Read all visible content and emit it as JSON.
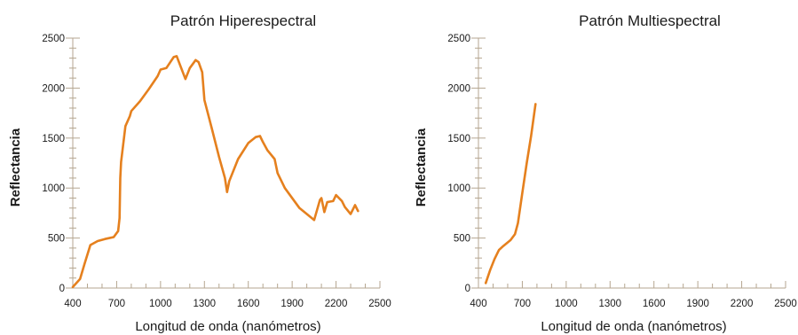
{
  "colors": {
    "line": "#e5801e",
    "axis": "#b5a690"
  },
  "chart_data": [
    {
      "type": "line",
      "title": "Patrón Hiperespectral",
      "xlabel": "Longitud de onda (nanómetros)",
      "ylabel": "Reflectancia",
      "xlim": [
        400,
        2500
      ],
      "ylim": [
        0,
        2500
      ],
      "xticks": [
        400,
        700,
        1000,
        1300,
        1600,
        1900,
        2200,
        2500
      ],
      "xtick_labels": [
        "400",
        "700",
        "1000",
        "1300",
        "1600",
        "1900",
        "2200",
        "2500"
      ],
      "yticks": [
        0,
        500,
        1000,
        1500,
        2000,
        2500
      ],
      "ytick_labels": [
        "0",
        "500",
        "1000",
        "1500",
        "2000",
        "2500"
      ],
      "grid": false,
      "series": [
        {
          "x": [
            400,
            450,
            480,
            520,
            570,
            620,
            680,
            710,
            720,
            725,
            730,
            760,
            790,
            800,
            860,
            920,
            980,
            1000,
            1040,
            1090,
            1110,
            1170,
            1200,
            1240,
            1260,
            1285,
            1300,
            1350,
            1400,
            1440,
            1455,
            1470,
            1530,
            1600,
            1650,
            1680,
            1700,
            1730,
            1780,
            1800,
            1850,
            1950,
            2050,
            2090,
            2100,
            2120,
            2140,
            2180,
            2200,
            2240,
            2260,
            2300,
            2330,
            2350
          ],
          "y": [
            10,
            90,
            240,
            430,
            470,
            490,
            510,
            570,
            700,
            1100,
            1260,
            1620,
            1720,
            1770,
            1870,
            1990,
            2120,
            2185,
            2200,
            2310,
            2320,
            2090,
            2200,
            2280,
            2260,
            2160,
            1880,
            1600,
            1310,
            1100,
            960,
            1070,
            1290,
            1450,
            1510,
            1520,
            1460,
            1380,
            1290,
            1150,
            1000,
            800,
            680,
            880,
            900,
            760,
            860,
            870,
            930,
            870,
            810,
            740,
            830,
            770
          ]
        }
      ]
    },
    {
      "type": "line",
      "title": "Patrón Multiespectral",
      "xlabel": "Longitud de onda (nanómetros)",
      "ylabel": "Reflectancia",
      "xlim": [
        400,
        2500
      ],
      "ylim": [
        0,
        2500
      ],
      "xticks": [
        400,
        700,
        1000,
        1300,
        1600,
        1900,
        2200,
        2500
      ],
      "xtick_labels": [
        "400",
        "700",
        "1000",
        "1300",
        "1600",
        "1900",
        "2200",
        "2500"
      ],
      "yticks": [
        0,
        500,
        1000,
        1500,
        2000,
        2500
      ],
      "ytick_labels": [
        "0",
        "500",
        "1000",
        "1500",
        "2000",
        "2500"
      ],
      "grid": false,
      "series": [
        {
          "x": [
            450,
            480,
            510,
            540,
            570,
            620,
            650,
            670,
            700,
            730,
            760,
            790
          ],
          "y": [
            50,
            180,
            290,
            380,
            420,
            480,
            540,
            650,
            950,
            1250,
            1520,
            1840
          ]
        }
      ]
    }
  ]
}
